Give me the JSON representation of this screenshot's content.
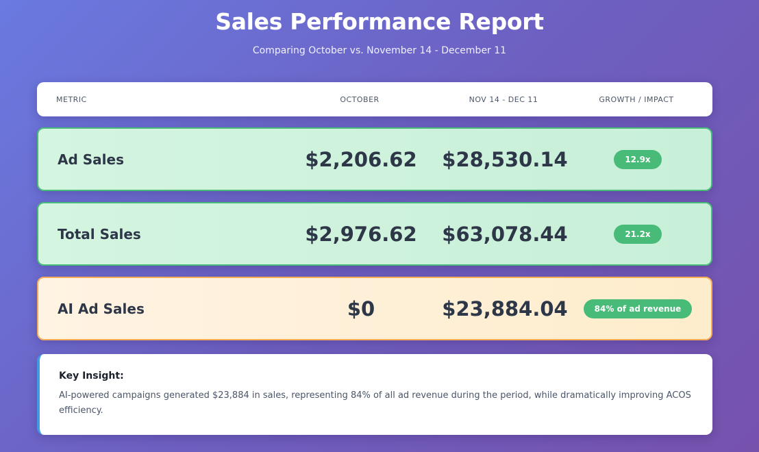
{
  "title": "Sales Performance Report",
  "subtitle": "Comparing October vs. November 14 - December 11",
  "headers": [
    "METRIC",
    "OCTOBER",
    "NOV 14 - DEC 11",
    "GROWTH / IMPACT"
  ],
  "rows": [
    {
      "metric": "Ad Sales",
      "october": "$2,206.62",
      "period": "$28,530.14",
      "growth": "12.9x"
    },
    {
      "metric": "Total Sales",
      "october": "$2,976.62",
      "period": "$63,078.44",
      "growth": "21.2x"
    },
    {
      "metric": "AI Ad Sales",
      "october": "$0",
      "period": "$23,884.04",
      "growth": "84% of ad revenue"
    }
  ],
  "insight": {
    "title": "Key Insight:",
    "text": "AI-powered campaigns generated $23,884 in sales, representing 84% of all ad revenue during the period, while dramatically improving ACOS efficiency."
  },
  "colors": {
    "green": "#48bb78",
    "orange": "#f6ad55",
    "blue": "#4299e1"
  }
}
